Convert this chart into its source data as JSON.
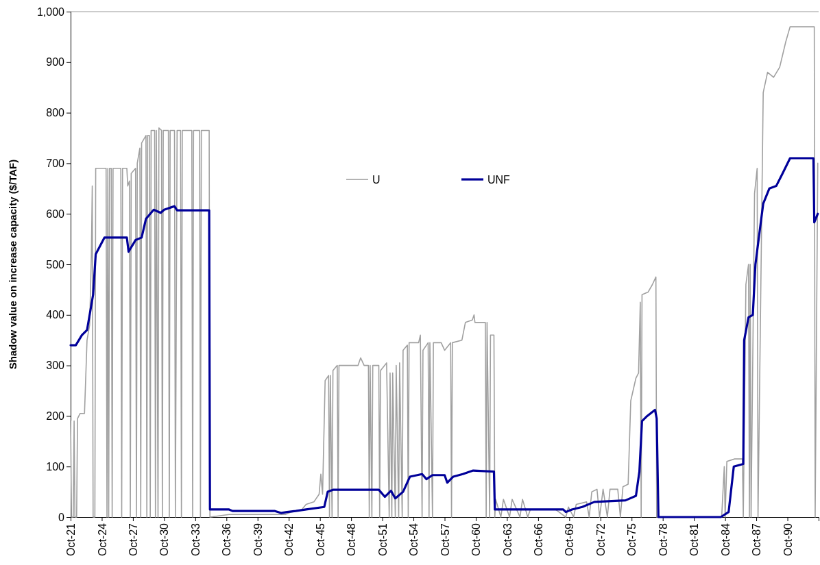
{
  "chart_data": {
    "type": "line",
    "ylabel": "Shadow value on increase capacity ($/TAF)",
    "xlim": [
      "1921-10",
      "1993-10"
    ],
    "xticks": [
      {
        "value": "1921-10",
        "label": "Oct-21"
      },
      {
        "value": "1924-10",
        "label": "Oct-24"
      },
      {
        "value": "1927-10",
        "label": "Oct-27"
      },
      {
        "value": "1930-10",
        "label": "Oct-30"
      },
      {
        "value": "1933-10",
        "label": "Oct-33"
      },
      {
        "value": "1936-10",
        "label": "Oct-36"
      },
      {
        "value": "1939-10",
        "label": "Oct-39"
      },
      {
        "value": "1942-10",
        "label": "Oct-42"
      },
      {
        "value": "1945-10",
        "label": "Oct-45"
      },
      {
        "value": "1948-10",
        "label": "Oct-48"
      },
      {
        "value": "1951-10",
        "label": "Oct-51"
      },
      {
        "value": "1954-10",
        "label": "Oct-54"
      },
      {
        "value": "1957-10",
        "label": "Oct-57"
      },
      {
        "value": "1960-10",
        "label": "Oct-60"
      },
      {
        "value": "1963-10",
        "label": "Oct-63"
      },
      {
        "value": "1966-10",
        "label": "Oct-66"
      },
      {
        "value": "1969-10",
        "label": "Oct-69"
      },
      {
        "value": "1972-10",
        "label": "Oct-72"
      },
      {
        "value": "1975-10",
        "label": "Oct-75"
      },
      {
        "value": "1978-10",
        "label": "Oct-78"
      },
      {
        "value": "1981-10",
        "label": "Oct-81"
      },
      {
        "value": "1984-10",
        "label": "Oct-84"
      },
      {
        "value": "1987-10",
        "label": "Oct-87"
      },
      {
        "value": "1990-10",
        "label": "Oct-90"
      }
    ],
    "ylim": [
      0,
      1000
    ],
    "yticks": [
      0,
      100,
      200,
      300,
      400,
      500,
      600,
      700,
      800,
      900,
      {
        "value": 1000,
        "label": "1,000"
      }
    ],
    "grid": false,
    "legend": "top",
    "marker": "none",
    "line_style": "solid",
    "series": [
      {
        "name": "U",
        "color": "#a0a0a0",
        "x": [
          "1921-10",
          "1921-11",
          "1922-01",
          "1922-02",
          "1922-03",
          "1922-05",
          "1922-06",
          "1922-09",
          "1923-02",
          "1923-05",
          "1923-08",
          "1923-10",
          "1923-11",
          "1923-12",
          "1924-02",
          "1924-03",
          "1925-03",
          "1925-04",
          "1925-05",
          "1925-06",
          "1925-07",
          "1925-09",
          "1925-10",
          "1925-11",
          "1926-08",
          "1926-09",
          "1926-10",
          "1927-03",
          "1927-04",
          "1927-06",
          "1927-07",
          "1927-08",
          "1928-01",
          "1928-02",
          "1928-03",
          "1928-06",
          "1928-07",
          "1928-08",
          "1929-01",
          "1929-02",
          "1929-03",
          "1929-05",
          "1929-06",
          "1929-07",
          "1929-11",
          "1929-12",
          "1930-01",
          "1930-03",
          "1930-04",
          "1930-07",
          "1930-08",
          "1930-09",
          "1931-03",
          "1931-04",
          "1931-05",
          "1931-10",
          "1931-11",
          "1932-01",
          "1932-05",
          "1932-06",
          "1932-07",
          "1933-06",
          "1933-07",
          "1933-08",
          "1934-03",
          "1934-04",
          "1934-05",
          "1935-02",
          "1935-03",
          "1937-01",
          "1942-06",
          "1943-01",
          "1944-01",
          "1944-06",
          "1945-03",
          "1945-09",
          "1945-11",
          "1946-01",
          "1946-04",
          "1946-08",
          "1946-09",
          "1946-10",
          "1946-12",
          "1947-01",
          "1947-06",
          "1947-07",
          "1947-08",
          "1949-06",
          "1949-09",
          "1950-01",
          "1950-06",
          "1950-07",
          "1950-08",
          "1950-10",
          "1950-11",
          "1951-06",
          "1951-07",
          "1951-08",
          "1952-03",
          "1952-06",
          "1952-07",
          "1952-09",
          "1952-10",
          "1953-01",
          "1953-02",
          "1953-05",
          "1953-06",
          "1953-09",
          "1953-10",
          "1954-03",
          "1954-04",
          "1954-05",
          "1955-04",
          "1955-06",
          "1955-08",
          "1955-09",
          "1956-03",
          "1956-04",
          "1956-05",
          "1956-08",
          "1956-09",
          "1957-06",
          "1957-10",
          "1958-05",
          "1958-06",
          "1958-07",
          "1959-06",
          "1959-10",
          "1960-06",
          "1960-08",
          "1960-09",
          "1961-09",
          "1961-10",
          "1961-11",
          "1962-02",
          "1962-03",
          "1962-07",
          "1962-08",
          "1962-09",
          "1963-03",
          "1963-06",
          "1964-01",
          "1964-04",
          "1965-01",
          "1965-04",
          "1965-10",
          "1966-01",
          "1968-06",
          "1969-06",
          "1969-09",
          "1970-03",
          "1970-06",
          "1971-06",
          "1971-09",
          "1971-12",
          "1972-06",
          "1972-09",
          "1973-01",
          "1973-06",
          "1973-09",
          "1974-06",
          "1974-09",
          "1974-12",
          "1975-06",
          "1975-09",
          "1976-03",
          "1976-06",
          "1976-08",
          "1976-09",
          "1976-10",
          "1977-05",
          "1977-10",
          "1978-02",
          "1978-03",
          "1984-06",
          "1984-09",
          "1984-10",
          "1984-12",
          "1985-09",
          "1986-06",
          "1986-07",
          "1986-10",
          "1987-01",
          "1987-02",
          "1987-03",
          "1987-04",
          "1987-08",
          "1987-11",
          "1987-12",
          "1988-06",
          "1988-11",
          "1989-06",
          "1990-01",
          "1990-08",
          "1991-01",
          "1993-05",
          "1993-06",
          "1993-09"
        ],
        "values": [
          190,
          0,
          0,
          190,
          0,
          0,
          195,
          205,
          205,
          350,
          380,
          520,
          655,
          0,
          0,
          690,
          690,
          0,
          690,
          0,
          690,
          690,
          0,
          690,
          690,
          0,
          690,
          690,
          655,
          665,
          0,
          680,
          690,
          0,
          700,
          730,
          0,
          740,
          755,
          0,
          755,
          755,
          0,
          765,
          765,
          0,
          765,
          0,
          770,
          765,
          0,
          765,
          765,
          0,
          765,
          765,
          0,
          765,
          765,
          0,
          765,
          765,
          0,
          765,
          765,
          0,
          765,
          765,
          0,
          5,
          5,
          10,
          15,
          25,
          30,
          45,
          85,
          45,
          270,
          280,
          0,
          280,
          0,
          290,
          300,
          0,
          300,
          300,
          315,
          300,
          300,
          0,
          300,
          0,
          300,
          300,
          0,
          290,
          305,
          0,
          285,
          0,
          285,
          0,
          300,
          0,
          305,
          0,
          330,
          340,
          0,
          345,
          345,
          360,
          0,
          330,
          345,
          0,
          345,
          0,
          345,
          345,
          330,
          345,
          0,
          345,
          350,
          385,
          390,
          400,
          385,
          385,
          0,
          385,
          0,
          360,
          360,
          0,
          35,
          0,
          35,
          0,
          35,
          0,
          35,
          0,
          15,
          15,
          0,
          20,
          0,
          25,
          30,
          0,
          50,
          55,
          0,
          55,
          0,
          55,
          55,
          0,
          60,
          65,
          230,
          275,
          285,
          425,
          0,
          440,
          445,
          460,
          475,
          0,
          0,
          100,
          0,
          110,
          115,
          115,
          0,
          460,
          500,
          0,
          500,
          0,
          640,
          690,
          0,
          840,
          880,
          870,
          890,
          940,
          970,
          970,
          0,
          700
        ]
      },
      {
        "name": "UNF",
        "color": "#000099",
        "x": [
          "1921-10",
          "1922-04",
          "1922-11",
          "1923-05",
          "1923-12",
          "1924-03",
          "1925-01",
          "1927-03",
          "1927-05",
          "1928-01",
          "1928-08",
          "1929-01",
          "1929-10",
          "1930-06",
          "1930-10",
          "1931-10",
          "1932-01",
          "1935-02",
          "1935-03",
          "1937-01",
          "1937-05",
          "1941-06",
          "1942-01",
          "1942-08",
          "1943-06",
          "1944-06",
          "1946-03",
          "1946-07",
          "1947-01",
          "1951-06",
          "1952-01",
          "1952-08",
          "1953-01",
          "1953-10",
          "1954-06",
          "1955-08",
          "1956-01",
          "1956-08",
          "1957-10",
          "1958-01",
          "1958-08",
          "1959-07",
          "1960-07",
          "1962-07",
          "1962-08",
          "1969-03",
          "1969-06",
          "1970-01",
          "1971-01",
          "1972-03",
          "1975-03",
          "1976-03",
          "1976-07",
          "1976-10",
          "1977-04",
          "1978-01",
          "1978-03",
          "1978-05",
          "1984-05",
          "1985-02",
          "1985-08",
          "1986-07",
          "1986-08",
          "1987-01",
          "1987-06",
          "1987-09",
          "1988-03",
          "1988-06",
          "1989-01",
          "1989-09",
          "1990-03",
          "1991-01",
          "1993-04",
          "1993-05",
          "1993-09"
        ],
        "values": [
          340,
          340,
          360,
          370,
          440,
          520,
          553,
          553,
          525,
          548,
          553,
          590,
          608,
          602,
          608,
          615,
          607,
          607,
          15,
          15,
          12,
          12,
          8,
          10,
          12,
          15,
          20,
          50,
          54,
          54,
          40,
          52,
          37,
          50,
          80,
          85,
          75,
          83,
          83,
          68,
          80,
          85,
          92,
          90,
          15,
          15,
          10,
          15,
          20,
          30,
          33,
          42,
          90,
          190,
          200,
          212,
          195,
          0,
          0,
          10,
          100,
          105,
          350,
          395,
          400,
          500,
          580,
          620,
          650,
          655,
          675,
          710,
          710,
          583,
          600
        ]
      }
    ]
  }
}
